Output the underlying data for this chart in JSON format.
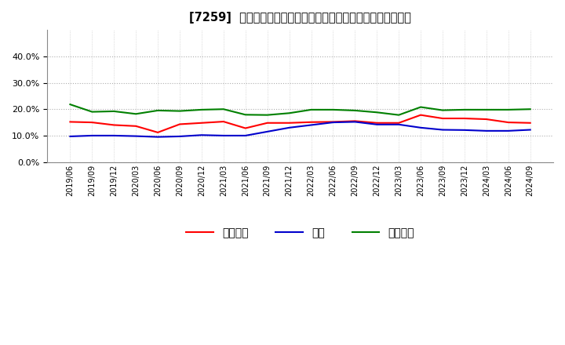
{
  "title": "[7259]  売上債権、在庫、買入債務の総資産に対する比率の推移",
  "dates": [
    "2019/06",
    "2019/09",
    "2019/12",
    "2020/03",
    "2020/06",
    "2020/09",
    "2020/12",
    "2021/03",
    "2021/06",
    "2021/09",
    "2021/12",
    "2022/03",
    "2022/06",
    "2022/09",
    "2022/12",
    "2023/03",
    "2023/06",
    "2023/09",
    "2023/12",
    "2024/03",
    "2024/06",
    "2024/09"
  ],
  "accounts_receivable": [
    0.152,
    0.15,
    0.14,
    0.136,
    0.112,
    0.143,
    0.148,
    0.153,
    0.128,
    0.148,
    0.148,
    0.151,
    0.152,
    0.155,
    0.148,
    0.148,
    0.178,
    0.165,
    0.165,
    0.162,
    0.15,
    0.148
  ],
  "inventory": [
    0.097,
    0.1,
    0.1,
    0.098,
    0.095,
    0.097,
    0.102,
    0.1,
    0.1,
    0.115,
    0.13,
    0.14,
    0.15,
    0.152,
    0.142,
    0.142,
    0.13,
    0.122,
    0.121,
    0.118,
    0.118,
    0.122
  ],
  "accounts_payable": [
    0.218,
    0.19,
    0.192,
    0.182,
    0.195,
    0.193,
    0.198,
    0.2,
    0.179,
    0.178,
    0.185,
    0.198,
    0.198,
    0.195,
    0.188,
    0.178,
    0.208,
    0.196,
    0.198,
    0.198,
    0.198,
    0.2
  ],
  "line_colors": {
    "accounts_receivable": "#ff0000",
    "inventory": "#0000cc",
    "accounts_payable": "#008000"
  },
  "legend_labels": {
    "accounts_receivable": "売上債権",
    "inventory": "在庫",
    "accounts_payable": "買入債務"
  },
  "ylim": [
    0.0,
    0.5
  ],
  "yticks": [
    0.0,
    0.1,
    0.2,
    0.3,
    0.4
  ],
  "background_color": "#ffffff",
  "plot_background": "#ffffff",
  "grid_color": "#999999",
  "title_fontsize": 10.5
}
